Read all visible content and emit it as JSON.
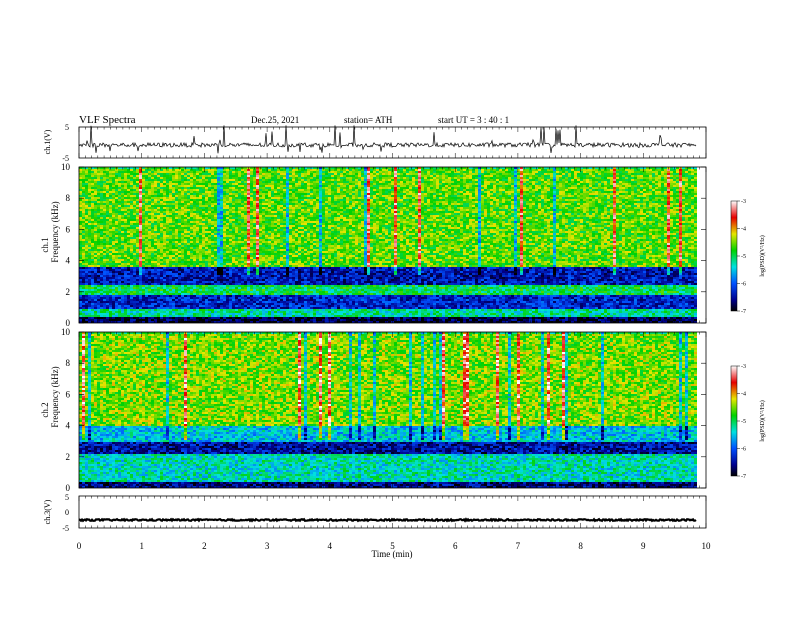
{
  "header": {
    "title": "VLF  Spectra",
    "date": "Dec.25, 2021",
    "station": "station= ATH",
    "start": "start  UT  =   3  : 40 : 1"
  },
  "chart_data": [
    {
      "type": "line",
      "panel": "ch1-waveform",
      "ylabel": "ch.1(V)",
      "ylim": [
        -5,
        5
      ],
      "yticks": [
        "5",
        "-5"
      ],
      "xlim": [
        0,
        10
      ],
      "approx_level": -0.8,
      "color": "#000000"
    },
    {
      "type": "heatmap",
      "panel": "ch1-spectrogram",
      "ylabel": "Frequency  (kHz)",
      "channel_label": "ch.1",
      "ylim": [
        0,
        10
      ],
      "yticks": [
        "0",
        "2",
        "4",
        "6",
        "8",
        "10"
      ],
      "xlim": [
        0,
        9.85
      ],
      "colorbar": {
        "label": "log(PSD)(V²/Hz)",
        "ticks": [
          "-3",
          "-4",
          "-5",
          "-6",
          "-7"
        ],
        "range": [
          -7,
          -3
        ]
      },
      "bands": [
        {
          "from": 0.0,
          "to": 0.4,
          "level": -6.8
        },
        {
          "from": 0.4,
          "to": 1.0,
          "level": -5.2
        },
        {
          "from": 1.0,
          "to": 1.9,
          "level": -6.3
        },
        {
          "from": 1.9,
          "to": 2.5,
          "level": -5.0
        },
        {
          "from": 2.5,
          "to": 3.7,
          "level": -6.4
        },
        {
          "from": 3.7,
          "to": 10.0,
          "level": -4.6
        }
      ]
    },
    {
      "type": "heatmap",
      "panel": "ch2-spectrogram",
      "ylabel": "Frequency  (kHz)",
      "channel_label": "ch.2",
      "ylim": [
        0,
        10
      ],
      "yticks": [
        "0",
        "2",
        "4",
        "6",
        "8",
        "10"
      ],
      "xlim": [
        0,
        9.85
      ],
      "colorbar": {
        "label": "log(PSD)(V²/Hz)",
        "ticks": [
          "-3",
          "-4",
          "-5",
          "-6",
          "-7"
        ],
        "range": [
          -7,
          -3
        ]
      },
      "bands": [
        {
          "from": 0.0,
          "to": 0.4,
          "level": -6.6
        },
        {
          "from": 0.4,
          "to": 2.2,
          "level": -5.3
        },
        {
          "from": 2.2,
          "to": 3.0,
          "level": -6.5
        },
        {
          "from": 3.0,
          "to": 4.0,
          "level": -5.5
        },
        {
          "from": 4.0,
          "to": 10.0,
          "level": -4.5
        }
      ]
    },
    {
      "type": "line",
      "panel": "ch3-waveform",
      "ylabel": "ch.3(V)",
      "ylim": [
        -5,
        5
      ],
      "yticks": [
        "5",
        "0",
        "-5"
      ],
      "xlim": [
        0,
        10
      ],
      "approx_level": -2.5,
      "color": "#000000"
    }
  ],
  "xaxis": {
    "label": "Time  (min)",
    "ticks": [
      "0",
      "1",
      "2",
      "3",
      "4",
      "5",
      "6",
      "7",
      "8",
      "9",
      "10"
    ],
    "range": [
      0,
      10
    ]
  }
}
